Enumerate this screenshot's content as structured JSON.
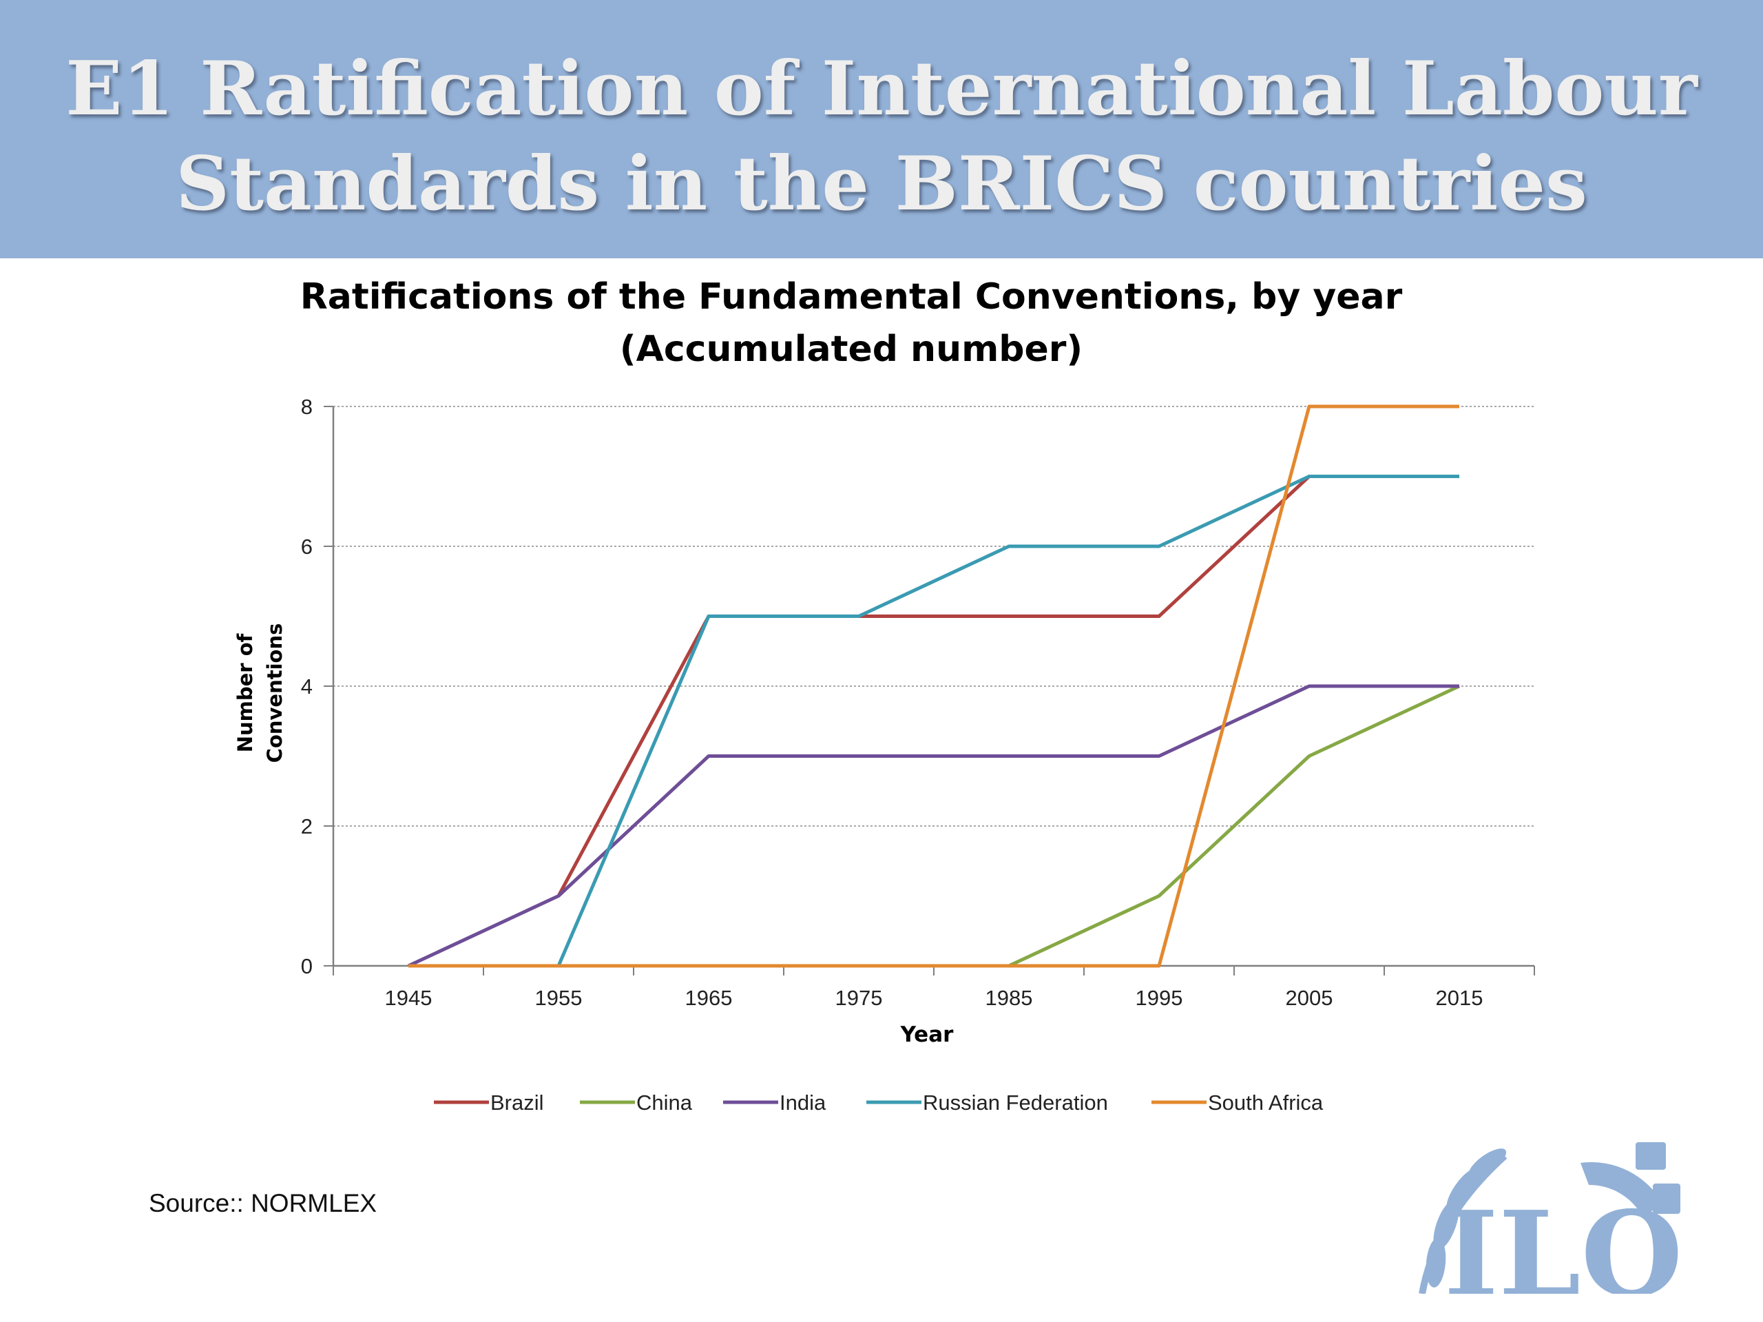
{
  "slide": {
    "title_line1": "E1   Ratification of International Labour",
    "title_line2": "Standards in the BRICS countries",
    "source": "Source:: NORMLEX",
    "logo": {
      "text": "ILO",
      "icon": "ilo-logo-icon",
      "color": "#93b1d7"
    }
  },
  "colors": {
    "banner": "#93b1d7",
    "banner_text": "#eeeeee"
  },
  "chart_data": {
    "type": "line",
    "title_line1": "Ratifications of the Fundamental Conventions, by year",
    "title_line2": "(Accumulated number)",
    "xlabel": "Year",
    "ylabel_line1": "Number of",
    "ylabel_line2": "Conventions",
    "x": [
      1945,
      1955,
      1965,
      1975,
      1985,
      1995,
      2005,
      2015
    ],
    "xlim": [
      1940,
      2020
    ],
    "ylim": [
      0,
      8
    ],
    "yticks": [
      0,
      2,
      4,
      6,
      8
    ],
    "grid": true,
    "legend": "bottom",
    "series": [
      {
        "name": "Brazil",
        "color": "#b0413e",
        "values": [
          null,
          1,
          5,
          5,
          5,
          5,
          7,
          7
        ]
      },
      {
        "name": "China",
        "color": "#86a845",
        "values": [
          null,
          null,
          null,
          null,
          0,
          1,
          3,
          4
        ]
      },
      {
        "name": "India",
        "color": "#6e4e97",
        "values": [
          0,
          1,
          3,
          3,
          3,
          3,
          4,
          4
        ]
      },
      {
        "name": "Russian Federation",
        "color": "#3a9bb2",
        "values": [
          null,
          0,
          5,
          5,
          6,
          6,
          7,
          7
        ]
      },
      {
        "name": "South Africa",
        "color": "#e3892f",
        "values": [
          0,
          0,
          0,
          0,
          0,
          0,
          8,
          8
        ]
      }
    ]
  }
}
